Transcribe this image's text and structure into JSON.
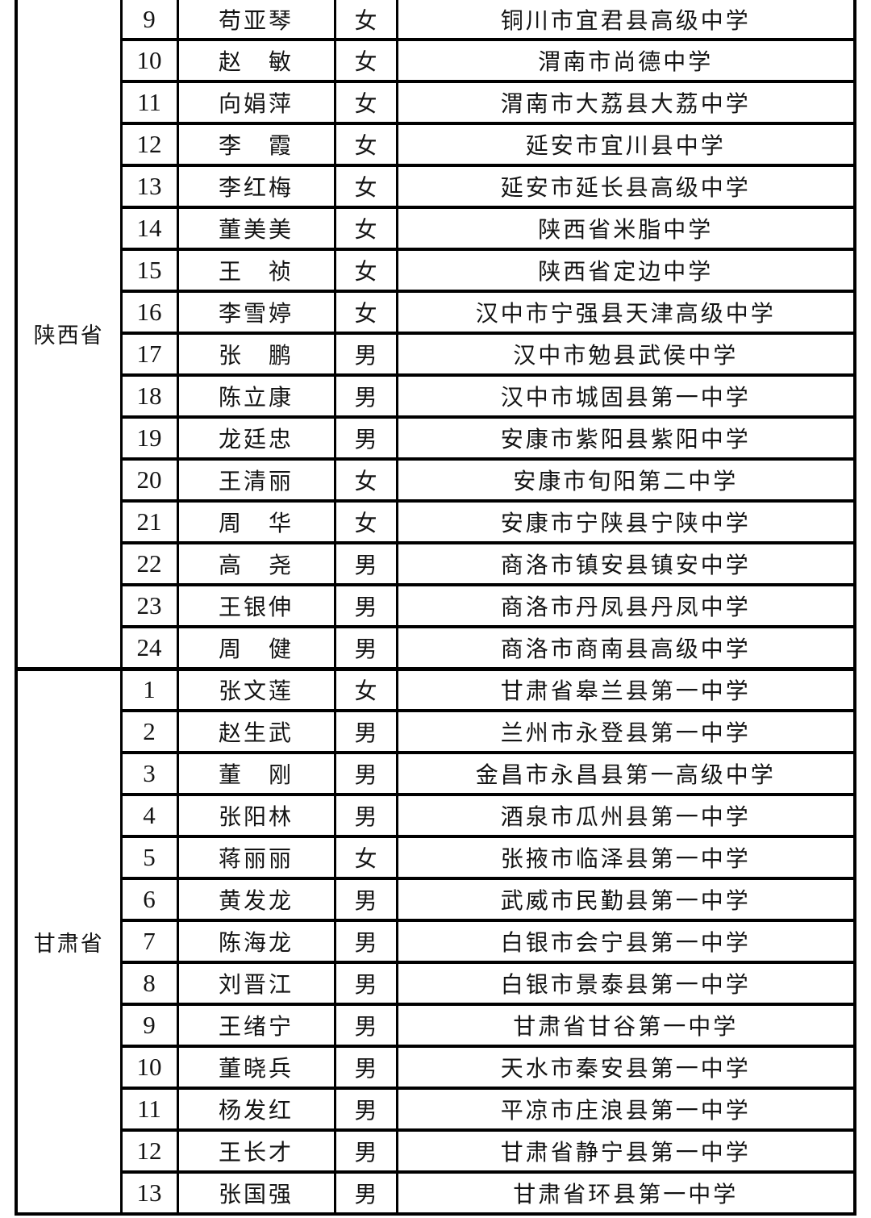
{
  "colors": {
    "background": "#ffffff",
    "grid_line": "#000000",
    "text": "#141414"
  },
  "table": {
    "column_keys": [
      "province",
      "number",
      "name",
      "gender",
      "school"
    ],
    "groups": [
      {
        "province": "陕西省",
        "rows": [
          {
            "no": "9",
            "name": "苟亚琴",
            "gender": "女",
            "school": "铜川市宜君县高级中学"
          },
          {
            "no": "10",
            "name": "赵　敏",
            "gender": "女",
            "school": "渭南市尚德中学"
          },
          {
            "no": "11",
            "name": "向娟萍",
            "gender": "女",
            "school": "渭南市大荔县大荔中学"
          },
          {
            "no": "12",
            "name": "李　霞",
            "gender": "女",
            "school": "延安市宜川县中学"
          },
          {
            "no": "13",
            "name": "李红梅",
            "gender": "女",
            "school": "延安市延长县高级中学"
          },
          {
            "no": "14",
            "name": "董美美",
            "gender": "女",
            "school": "陕西省米脂中学"
          },
          {
            "no": "15",
            "name": "王　祯",
            "gender": "女",
            "school": "陕西省定边中学"
          },
          {
            "no": "16",
            "name": "李雪婷",
            "gender": "女",
            "school": "汉中市宁强县天津高级中学"
          },
          {
            "no": "17",
            "name": "张　鹏",
            "gender": "男",
            "school": "汉中市勉县武侯中学"
          },
          {
            "no": "18",
            "name": "陈立康",
            "gender": "男",
            "school": "汉中市城固县第一中学"
          },
          {
            "no": "19",
            "name": "龙廷忠",
            "gender": "男",
            "school": "安康市紫阳县紫阳中学"
          },
          {
            "no": "20",
            "name": "王清丽",
            "gender": "女",
            "school": "安康市旬阳第二中学"
          },
          {
            "no": "21",
            "name": "周　华",
            "gender": "女",
            "school": "安康市宁陕县宁陕中学"
          },
          {
            "no": "22",
            "name": "高　尧",
            "gender": "男",
            "school": "商洛市镇安县镇安中学"
          },
          {
            "no": "23",
            "name": "王银伸",
            "gender": "男",
            "school": "商洛市丹凤县丹凤中学"
          },
          {
            "no": "24",
            "name": "周　健",
            "gender": "男",
            "school": "商洛市商南县高级中学"
          }
        ]
      },
      {
        "province": "甘肃省",
        "rows": [
          {
            "no": "1",
            "name": "张文莲",
            "gender": "女",
            "school": "甘肃省皋兰县第一中学"
          },
          {
            "no": "2",
            "name": "赵生武",
            "gender": "男",
            "school": "兰州市永登县第一中学"
          },
          {
            "no": "3",
            "name": "董　刚",
            "gender": "男",
            "school": "金昌市永昌县第一高级中学"
          },
          {
            "no": "4",
            "name": "张阳林",
            "gender": "男",
            "school": "酒泉市瓜州县第一中学"
          },
          {
            "no": "5",
            "name": "蒋丽丽",
            "gender": "女",
            "school": "张掖市临泽县第一中学"
          },
          {
            "no": "6",
            "name": "黄发龙",
            "gender": "男",
            "school": "武威市民勤县第一中学"
          },
          {
            "no": "7",
            "name": "陈海龙",
            "gender": "男",
            "school": "白银市会宁县第一中学"
          },
          {
            "no": "8",
            "name": "刘晋江",
            "gender": "男",
            "school": "白银市景泰县第一中学"
          },
          {
            "no": "9",
            "name": "王绪宁",
            "gender": "男",
            "school": "甘肃省甘谷第一中学"
          },
          {
            "no": "10",
            "name": "董晓兵",
            "gender": "男",
            "school": "天水市秦安县第一中学"
          },
          {
            "no": "11",
            "name": "杨发红",
            "gender": "男",
            "school": "平凉市庄浪县第一中学"
          },
          {
            "no": "12",
            "name": "王长才",
            "gender": "男",
            "school": "甘肃省静宁县第一中学"
          },
          {
            "no": "13",
            "name": "张国强",
            "gender": "男",
            "school": "甘肃省环县第一中学"
          }
        ]
      }
    ]
  }
}
